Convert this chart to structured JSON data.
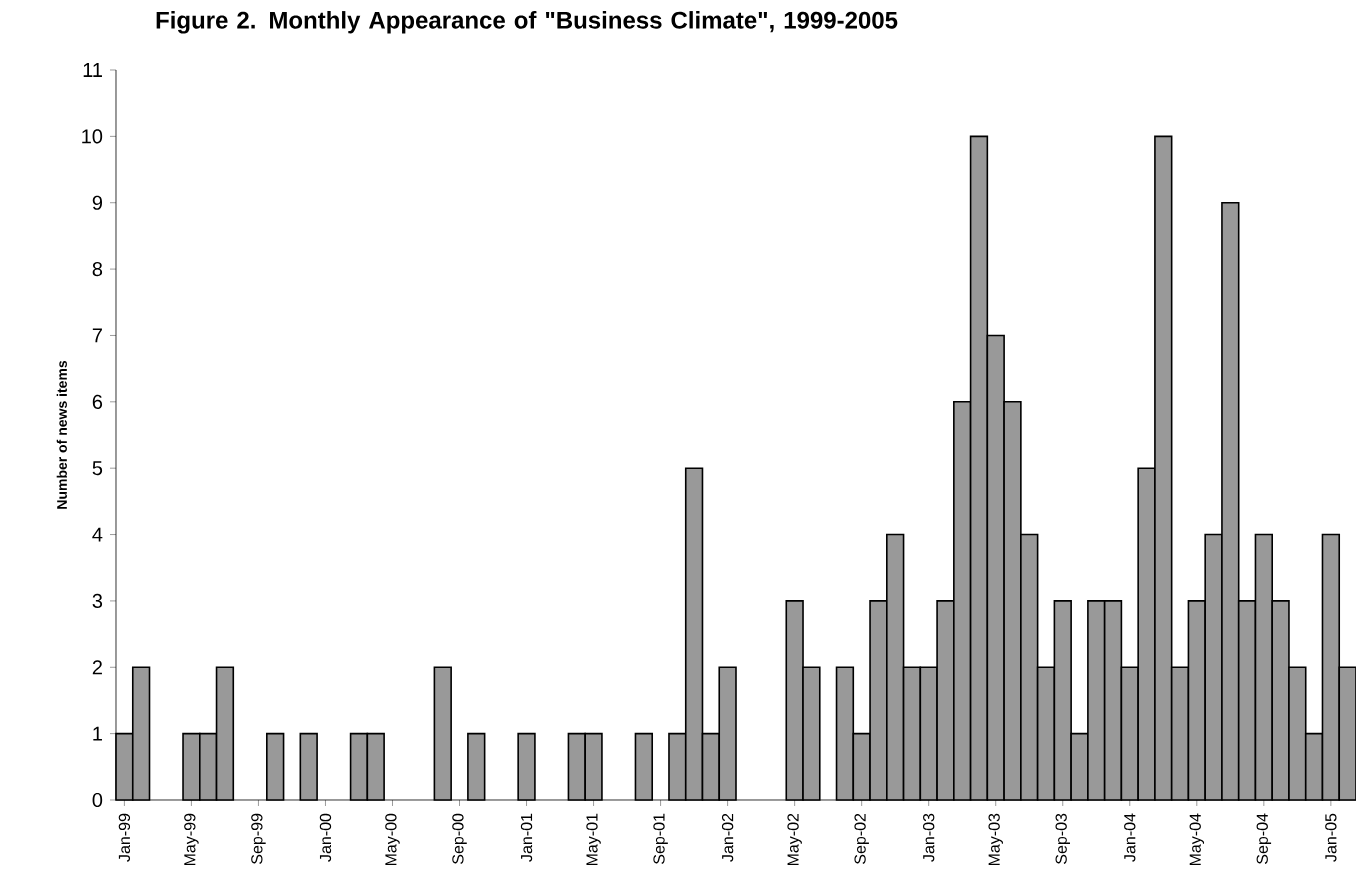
{
  "chart_data": {
    "type": "bar",
    "title": "Figure 2.  Monthly Appearance of \"Business Climate\", 1999-2005",
    "ylabel": "Number of news items",
    "categories": [
      "Jan-99",
      null,
      null,
      null,
      "May-99",
      null,
      null,
      null,
      "Sep-99",
      null,
      null,
      null,
      "Jan-00",
      null,
      null,
      null,
      "May-00",
      null,
      null,
      null,
      "Sep-00",
      null,
      null,
      null,
      "Jan-01",
      null,
      null,
      null,
      "May-01",
      null,
      null,
      null,
      "Sep-01",
      null,
      null,
      null,
      "Jan-02",
      null,
      null,
      null,
      "May-02",
      null,
      null,
      null,
      "Sep-02",
      null,
      null,
      null,
      "Jan-03",
      null,
      null,
      null,
      "May-03",
      null,
      null,
      null,
      "Sep-03",
      null,
      null,
      null,
      "Jan-04",
      null,
      null,
      null,
      "May-04",
      null,
      null,
      null,
      "Sep-04",
      null,
      null,
      null,
      "Jan-05",
      null
    ],
    "values": [
      1,
      2,
      0,
      0,
      1,
      1,
      2,
      0,
      0,
      1,
      0,
      1,
      0,
      0,
      1,
      1,
      0,
      0,
      0,
      2,
      0,
      1,
      0,
      0,
      1,
      0,
      0,
      1,
      1,
      0,
      0,
      1,
      0,
      1,
      5,
      1,
      2,
      0,
      0,
      0,
      3,
      2,
      0,
      2,
      1,
      3,
      4,
      2,
      2,
      3,
      6,
      10,
      7,
      6,
      4,
      2,
      3,
      1,
      3,
      3,
      2,
      5,
      10,
      2,
      3,
      4,
      9,
      3,
      4,
      3,
      2,
      1,
      4,
      2
    ],
    "color": "#999999",
    "ylim": [
      0,
      11
    ],
    "yticks": [
      0,
      1,
      2,
      3,
      4,
      5,
      6,
      7,
      8,
      9,
      10,
      11
    ],
    "grid": false
  }
}
